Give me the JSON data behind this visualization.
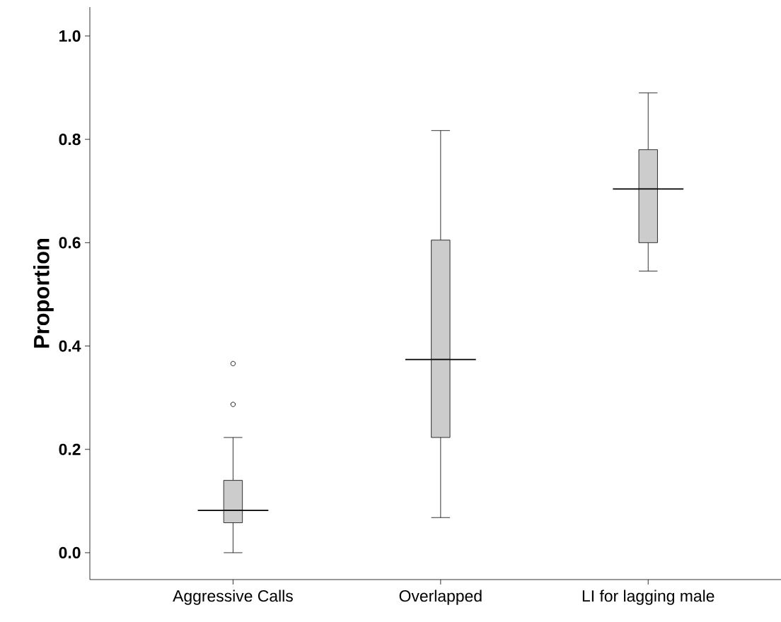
{
  "chart_data": {
    "type": "box",
    "ylabel": "Proportion",
    "categories": [
      "Aggressive Calls",
      "Overlapped",
      "LI for lagging male"
    ],
    "color": "#cccccc",
    "boxes": [
      {
        "low": 0.0,
        "q1": 0.058,
        "median": 0.082,
        "q3": 0.14,
        "high": 0.223,
        "outliers": [
          0.287,
          0.366
        ]
      },
      {
        "low": 0.068,
        "q1": 0.223,
        "median": 0.374,
        "q3": 0.605,
        "high": 0.817
      },
      {
        "low": 0.545,
        "q1": 0.6,
        "median": 0.704,
        "q3": 0.78,
        "high": 0.89
      }
    ],
    "ylim": [
      -0.052,
      1.056
    ],
    "yticks": [
      {
        "value": 0,
        "label": "0.0"
      },
      {
        "value": 0.2,
        "label": "0.2"
      },
      {
        "value": 0.4,
        "label": "0.4"
      },
      {
        "value": 0.6,
        "label": "0.6"
      },
      {
        "value": 0.8,
        "label": "0.8"
      },
      {
        "value": 1.0,
        "label": "1.0"
      }
    ]
  }
}
